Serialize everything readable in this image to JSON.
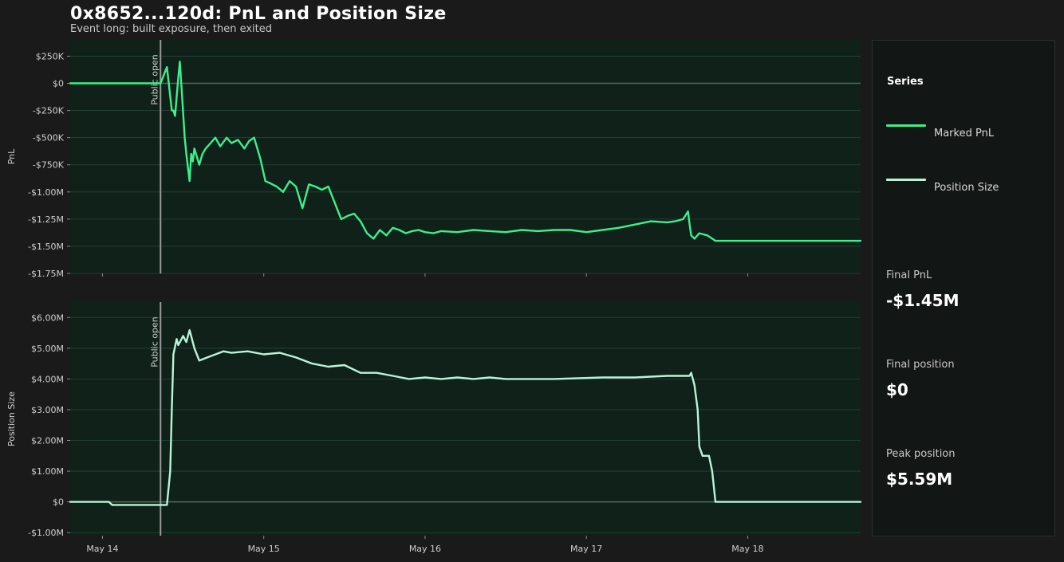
{
  "header": {
    "title": "0x8652...120d: PnL and Position Size",
    "subtitle": "Event long: built exposure, then exited"
  },
  "legend": {
    "title": "Series",
    "items": [
      {
        "label": "Marked PnL",
        "color": "#3cf08c"
      },
      {
        "label": "Position Size",
        "color": "#b8f5d8"
      }
    ]
  },
  "stats": [
    {
      "label": "Final PnL",
      "value": "-$1.45M"
    },
    {
      "label": "Final position",
      "value": "$0"
    },
    {
      "label": "Peak position",
      "value": "$5.59M"
    }
  ],
  "colors": {
    "background": "#1a1a1a",
    "plot_background": "#0f2119",
    "pnl_line": "#3cf08c",
    "position_line": "#b8f5d8",
    "grid": "#2a4438",
    "event_line": "#9a9a9a"
  },
  "chart_data": [
    {
      "type": "line",
      "ylabel": "PnL",
      "ylim": [
        -1750000,
        400000
      ],
      "yticks": [
        250000,
        0,
        -250000,
        -500000,
        -750000,
        -1000000,
        -1250000,
        -1500000,
        -1750000
      ],
      "ytick_labels": [
        "$250K",
        "$0",
        "-$250K",
        "-$500K",
        "-$750K",
        "-$1.00M",
        "-$1.25M",
        "-$1.50M",
        "-$1.75M"
      ],
      "xlim": [
        0,
        4.9
      ],
      "event": {
        "x": 0.56,
        "label": "Public open"
      },
      "series": [
        {
          "name": "Marked PnL",
          "x": [
            0,
            0.56,
            0.6,
            0.63,
            0.64,
            0.65,
            0.67,
            0.68,
            0.71,
            0.72,
            0.74,
            0.75,
            0.76,
            0.77,
            0.8,
            0.82,
            0.84,
            0.87,
            0.9,
            0.93,
            0.97,
            1.0,
            1.04,
            1.08,
            1.11,
            1.14,
            1.18,
            1.21,
            1.24,
            1.28,
            1.32,
            1.36,
            1.4,
            1.44,
            1.48,
            1.52,
            1.56,
            1.6,
            1.64,
            1.68,
            1.72,
            1.76,
            1.8,
            1.84,
            1.88,
            1.92,
            1.96,
            2.0,
            2.04,
            2.08,
            2.12,
            2.16,
            2.2,
            2.25,
            2.3,
            2.4,
            2.5,
            2.6,
            2.7,
            2.8,
            2.9,
            3.0,
            3.1,
            3.2,
            3.3,
            3.4,
            3.5,
            3.6,
            3.7,
            3.75,
            3.8,
            3.83,
            3.84,
            3.85,
            3.87,
            3.9,
            3.95,
            4.0,
            4.2,
            4.5,
            4.9
          ],
          "y": [
            0,
            0,
            150000,
            -250000,
            -250000,
            -300000,
            50000,
            200000,
            -500000,
            -650000,
            -900000,
            -650000,
            -720000,
            -600000,
            -750000,
            -650000,
            -600000,
            -550000,
            -500000,
            -580000,
            -500000,
            -550000,
            -520000,
            -600000,
            -530000,
            -500000,
            -700000,
            -900000,
            -920000,
            -950000,
            -1000000,
            -900000,
            -950000,
            -1150000,
            -930000,
            -950000,
            -980000,
            -950000,
            -1100000,
            -1250000,
            -1220000,
            -1200000,
            -1270000,
            -1380000,
            -1430000,
            -1350000,
            -1400000,
            -1330000,
            -1350000,
            -1380000,
            -1360000,
            -1350000,
            -1370000,
            -1380000,
            -1360000,
            -1370000,
            -1350000,
            -1360000,
            -1370000,
            -1350000,
            -1360000,
            -1350000,
            -1350000,
            -1370000,
            -1350000,
            -1330000,
            -1300000,
            -1270000,
            -1280000,
            -1270000,
            -1250000,
            -1180000,
            -1300000,
            -1400000,
            -1430000,
            -1380000,
            -1400000,
            -1450000,
            -1450000,
            -1450000,
            -1450000
          ]
        }
      ]
    },
    {
      "type": "line",
      "ylabel": "Position Size",
      "ylim": [
        -1100000,
        6500000
      ],
      "yticks": [
        6000000,
        5000000,
        4000000,
        3000000,
        2000000,
        1000000,
        0,
        -1000000
      ],
      "ytick_labels": [
        "$6.00M",
        "$5.00M",
        "$4.00M",
        "$3.00M",
        "$2.00M",
        "$1.00M",
        "$0",
        "-$1.00M"
      ],
      "xlim": [
        0,
        4.9
      ],
      "xticks": [
        0.2,
        1.2,
        2.2,
        3.2,
        4.2
      ],
      "xtick_labels": [
        "May 14",
        "May 15",
        "May 16",
        "May 17",
        "May 18"
      ],
      "event": {
        "x": 0.56,
        "label": "Public open"
      },
      "series": [
        {
          "name": "Position Size",
          "x": [
            0,
            0.24,
            0.26,
            0.6,
            0.62,
            0.63,
            0.64,
            0.66,
            0.67,
            0.7,
            0.72,
            0.74,
            0.77,
            0.8,
            0.85,
            0.95,
            1.0,
            1.1,
            1.2,
            1.3,
            1.4,
            1.5,
            1.6,
            1.7,
            1.8,
            1.9,
            2.0,
            2.1,
            2.2,
            2.3,
            2.4,
            2.5,
            2.6,
            2.7,
            3.0,
            3.3,
            3.5,
            3.7,
            3.8,
            3.84,
            3.85,
            3.87,
            3.89,
            3.9,
            3.92,
            3.94,
            3.96,
            3.98,
            4.0,
            4.1,
            4.3,
            4.6,
            4.9
          ],
          "y": [
            0,
            0,
            -100000,
            -100000,
            1000000,
            3000000,
            4800000,
            5300000,
            5100000,
            5400000,
            5200000,
            5590000,
            5000000,
            4600000,
            4700000,
            4900000,
            4850000,
            4900000,
            4800000,
            4850000,
            4700000,
            4500000,
            4400000,
            4450000,
            4200000,
            4200000,
            4100000,
            4000000,
            4050000,
            4000000,
            4050000,
            4000000,
            4050000,
            4000000,
            4000000,
            4050000,
            4050000,
            4100000,
            4100000,
            4100000,
            4200000,
            3800000,
            3000000,
            1800000,
            1500000,
            1500000,
            1500000,
            1000000,
            0,
            0,
            0,
            0,
            0
          ]
        }
      ]
    }
  ]
}
